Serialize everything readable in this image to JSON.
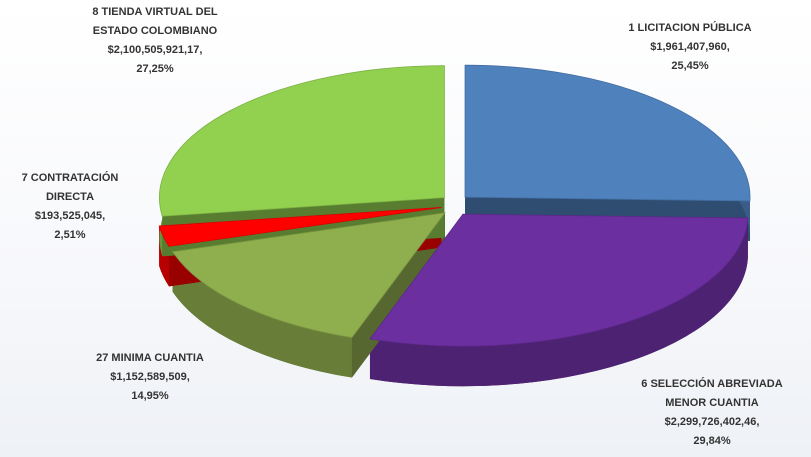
{
  "chart_data": {
    "type": "pie3d",
    "categories": [
      [
        "1 LICITACION PÚBLICA"
      ],
      [
        "6 SELECCIÓN ABREVIADA",
        "MENOR CUANTIA"
      ],
      [
        "27 MINIMA CUANTIA"
      ],
      [
        "7 CONTRATACIÓN",
        "DIRECTA"
      ],
      [
        "8 TIENDA VIRTUAL DEL",
        "ESTADO COLOMBIANO"
      ]
    ],
    "values": [
      25.45,
      29.84,
      14.95,
      2.51,
      27.25
    ],
    "value_labels": [
      "25,45%",
      "29,84%",
      "14,95%",
      "2,51%",
      "27,25%"
    ],
    "amounts": [
      1961407960,
      2299726402.46,
      1152589509,
      193525045,
      2100505921.17
    ],
    "amount_labels": [
      "$1,961,407,960,",
      "$2,299,726,402,46,",
      "$1,152,589,509,",
      "$193,525,045,",
      "$2,100,505,921,17,"
    ],
    "colors": [
      "#4f81bd",
      "#6b2fa0",
      "#8fae4e",
      "#ff0000",
      "#92d050"
    ]
  }
}
